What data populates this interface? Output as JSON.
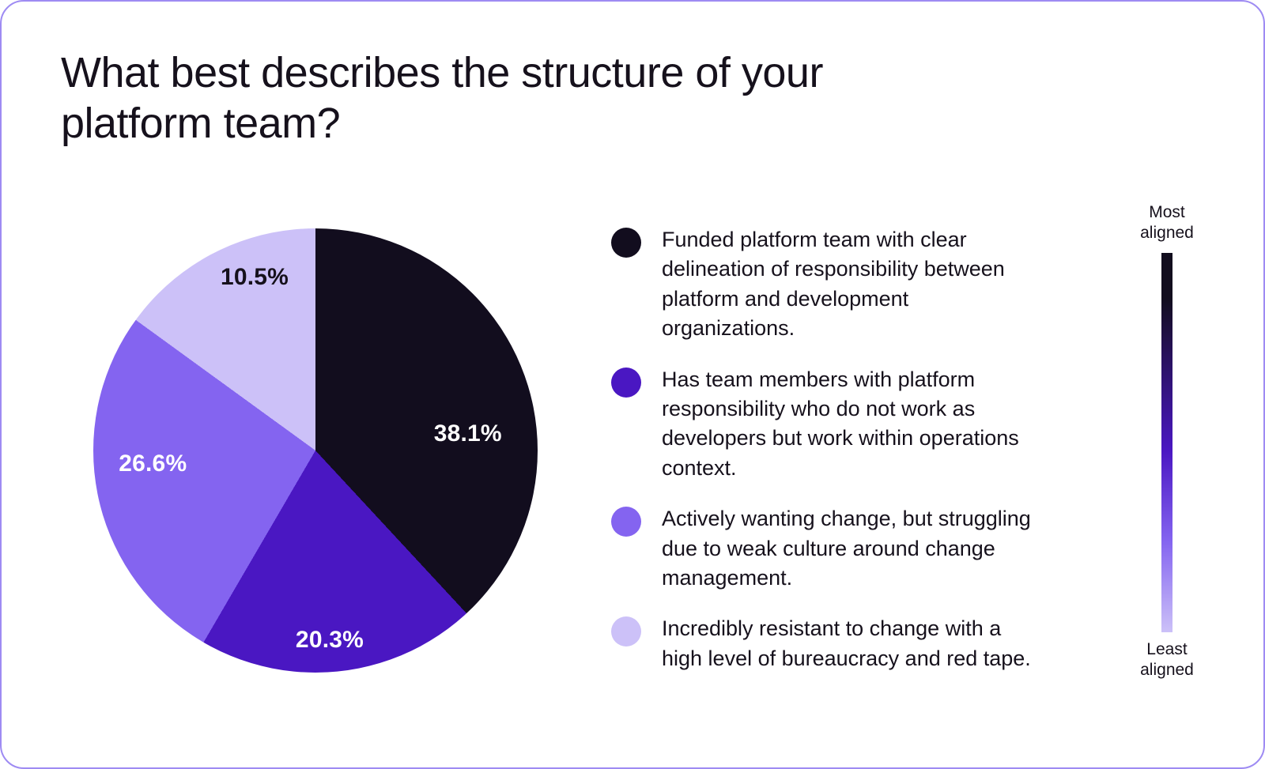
{
  "chart_data": {
    "type": "pie",
    "title": "What best describes the structure of your\nplatform team?",
    "legend_position": "right",
    "start_angle_deg": 0,
    "direction": "clockwise",
    "slices": [
      {
        "value": 38.1,
        "display": "38.1%",
        "color": "#120d1e",
        "label_text_color": "#ffffff",
        "legend_text": "Funded platform team with clear\ndelineation of responsibility between\nplatform and development\norganizations."
      },
      {
        "value": 20.3,
        "display": "20.3%",
        "color": "#4a17c2",
        "label_text_color": "#ffffff",
        "legend_text": "Has team members with platform\nresponsibility who do not work as\ndevelopers but work within operations\ncontext."
      },
      {
        "value": 26.6,
        "display": "26.6%",
        "color": "#8464f0",
        "label_text_color": "#ffffff",
        "legend_text": "Actively wanting change, but struggling\ndue to weak culture around change\nmanagement."
      },
      {
        "value": 10.5,
        "display": "10.5%",
        "color": "#ccc1f8",
        "label_text_color": "#16111c",
        "legend_text": "Incredibly resistant to change with a\nhigh level of bureaucracy and red tape."
      }
    ]
  },
  "scale": {
    "top_label": "Most\naligned",
    "bottom_label": "Least\naligned"
  }
}
